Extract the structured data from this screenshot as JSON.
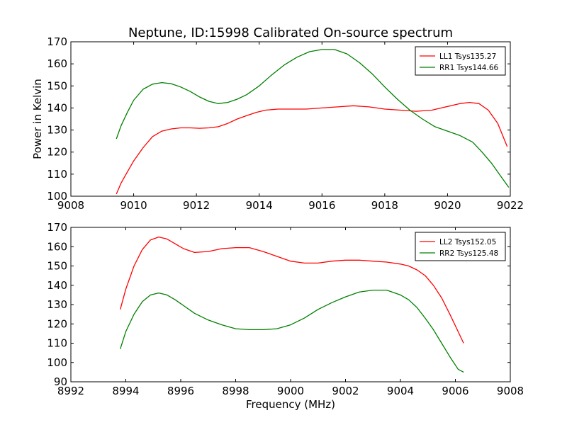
{
  "title": "Neptune, ID:15998 Calibrated On-source spectrum",
  "ylabel": "Power in Kelvin",
  "xlabel": "Frequency (MHz)",
  "colors": {
    "red": "#ff0000",
    "green": "#008000"
  },
  "chart_data": [
    {
      "type": "line",
      "title": "Neptune, ID:15998 Calibrated On-source spectrum",
      "xlabel": "",
      "ylabel": "Power in Kelvin",
      "xlim": [
        9008,
        9022
      ],
      "ylim": [
        100,
        170
      ],
      "xticks": [
        9008,
        9010,
        9012,
        9014,
        9016,
        9018,
        9020,
        9022
      ],
      "yticks": [
        100,
        110,
        120,
        130,
        140,
        150,
        160,
        170
      ],
      "grid": false,
      "legend": "top-right",
      "series": [
        {
          "name": "LL1 Tsys135.27",
          "color": "#ff0000",
          "x": [
            9009.45,
            9009.6,
            9009.8,
            9010.0,
            9010.3,
            9010.6,
            9010.9,
            9011.2,
            9011.5,
            9011.8,
            9012.1,
            9012.4,
            9012.7,
            9013.0,
            9013.3,
            9013.6,
            9013.9,
            9014.2,
            9014.6,
            9015.0,
            9015.5,
            9016.0,
            9016.5,
            9017.0,
            9017.5,
            9018.0,
            9018.5,
            9019.0,
            9019.5,
            9019.8,
            9020.1,
            9020.4,
            9020.7,
            9021.0,
            9021.3,
            9021.6,
            9021.9
          ],
          "values": [
            101,
            106,
            111,
            116,
            122,
            127,
            129.5,
            130.5,
            131,
            131,
            130.8,
            131,
            131.5,
            133,
            135,
            136.5,
            138,
            139,
            139.5,
            139.5,
            139.5,
            140,
            140.5,
            141,
            140.5,
            139.5,
            139,
            138.5,
            139,
            140,
            141,
            142,
            142.5,
            142,
            139,
            133,
            122.5
          ]
        },
        {
          "name": "RR1 Tsys144.66",
          "color": "#008000",
          "x": [
            9009.45,
            9009.6,
            9009.8,
            9010.0,
            9010.3,
            9010.6,
            9010.9,
            9011.2,
            9011.5,
            9011.8,
            9012.1,
            9012.4,
            9012.7,
            9013.0,
            9013.3,
            9013.6,
            9014.0,
            9014.4,
            9014.8,
            9015.2,
            9015.6,
            9016.0,
            9016.4,
            9016.8,
            9017.2,
            9017.6,
            9018.0,
            9018.4,
            9018.8,
            9019.2,
            9019.6,
            9020.0,
            9020.4,
            9020.8,
            9021.1,
            9021.4,
            9021.7,
            9021.95
          ],
          "values": [
            126,
            132,
            138,
            143.5,
            148.5,
            150.8,
            151.5,
            151,
            149.5,
            147.5,
            145,
            143,
            142,
            142.5,
            144,
            146,
            150,
            155,
            159.5,
            163,
            165.5,
            166.5,
            166.5,
            164.5,
            160.5,
            155.5,
            149.5,
            144,
            139,
            135,
            131.5,
            129.5,
            127.5,
            124.5,
            120,
            115,
            109,
            104
          ]
        }
      ]
    },
    {
      "type": "line",
      "title": "",
      "xlabel": "Frequency (MHz)",
      "ylabel": "",
      "xlim": [
        8992,
        9008
      ],
      "ylim": [
        90,
        170
      ],
      "xticks": [
        8992,
        8994,
        8996,
        8998,
        9000,
        9002,
        9004,
        9006,
        9008
      ],
      "yticks": [
        90,
        100,
        110,
        120,
        130,
        140,
        150,
        160,
        170
      ],
      "grid": false,
      "legend": "top-right",
      "series": [
        {
          "name": "LL2 Tsys152.05",
          "color": "#ff0000",
          "x": [
            8993.8,
            8994.0,
            8994.3,
            8994.6,
            8994.9,
            8995.2,
            8995.5,
            8995.8,
            8996.1,
            8996.5,
            8997.0,
            8997.5,
            8998.0,
            8998.5,
            8999.0,
            8999.5,
            9000.0,
            9000.5,
            9001.0,
            9001.5,
            9002.0,
            9002.5,
            9003.0,
            9003.5,
            9004.0,
            9004.3,
            9004.6,
            9004.9,
            9005.2,
            9005.5,
            9005.8,
            9006.1,
            9006.3
          ],
          "values": [
            127.5,
            138,
            150,
            158.5,
            163.5,
            165,
            164,
            161.5,
            159,
            157,
            157.5,
            159,
            159.5,
            159.5,
            157.5,
            155,
            152.5,
            151.5,
            151.5,
            152.5,
            153,
            153,
            152.5,
            152,
            151,
            150,
            148,
            145,
            140,
            133.5,
            125,
            116,
            110
          ]
        },
        {
          "name": "RR2 Tsys125.48",
          "color": "#008000",
          "x": [
            8993.8,
            8994.0,
            8994.3,
            8994.6,
            8994.9,
            8995.2,
            8995.5,
            8995.8,
            8996.1,
            8996.5,
            8997.0,
            8997.5,
            8998.0,
            8998.5,
            8999.0,
            8999.5,
            9000.0,
            9000.5,
            9001.0,
            9001.5,
            9002.0,
            9002.5,
            9003.0,
            9003.5,
            9004.0,
            9004.3,
            9004.6,
            9004.9,
            9005.2,
            9005.5,
            9005.8,
            9006.1,
            9006.3
          ],
          "values": [
            107,
            116,
            125,
            131.5,
            135,
            136,
            135,
            132.5,
            129.5,
            125.5,
            122,
            119.5,
            117.5,
            117,
            117,
            117.5,
            119.5,
            123,
            127.5,
            131,
            134,
            136.5,
            137.5,
            137.5,
            135,
            132.5,
            128.5,
            123,
            117,
            110,
            103,
            96.5,
            95
          ]
        }
      ]
    }
  ]
}
